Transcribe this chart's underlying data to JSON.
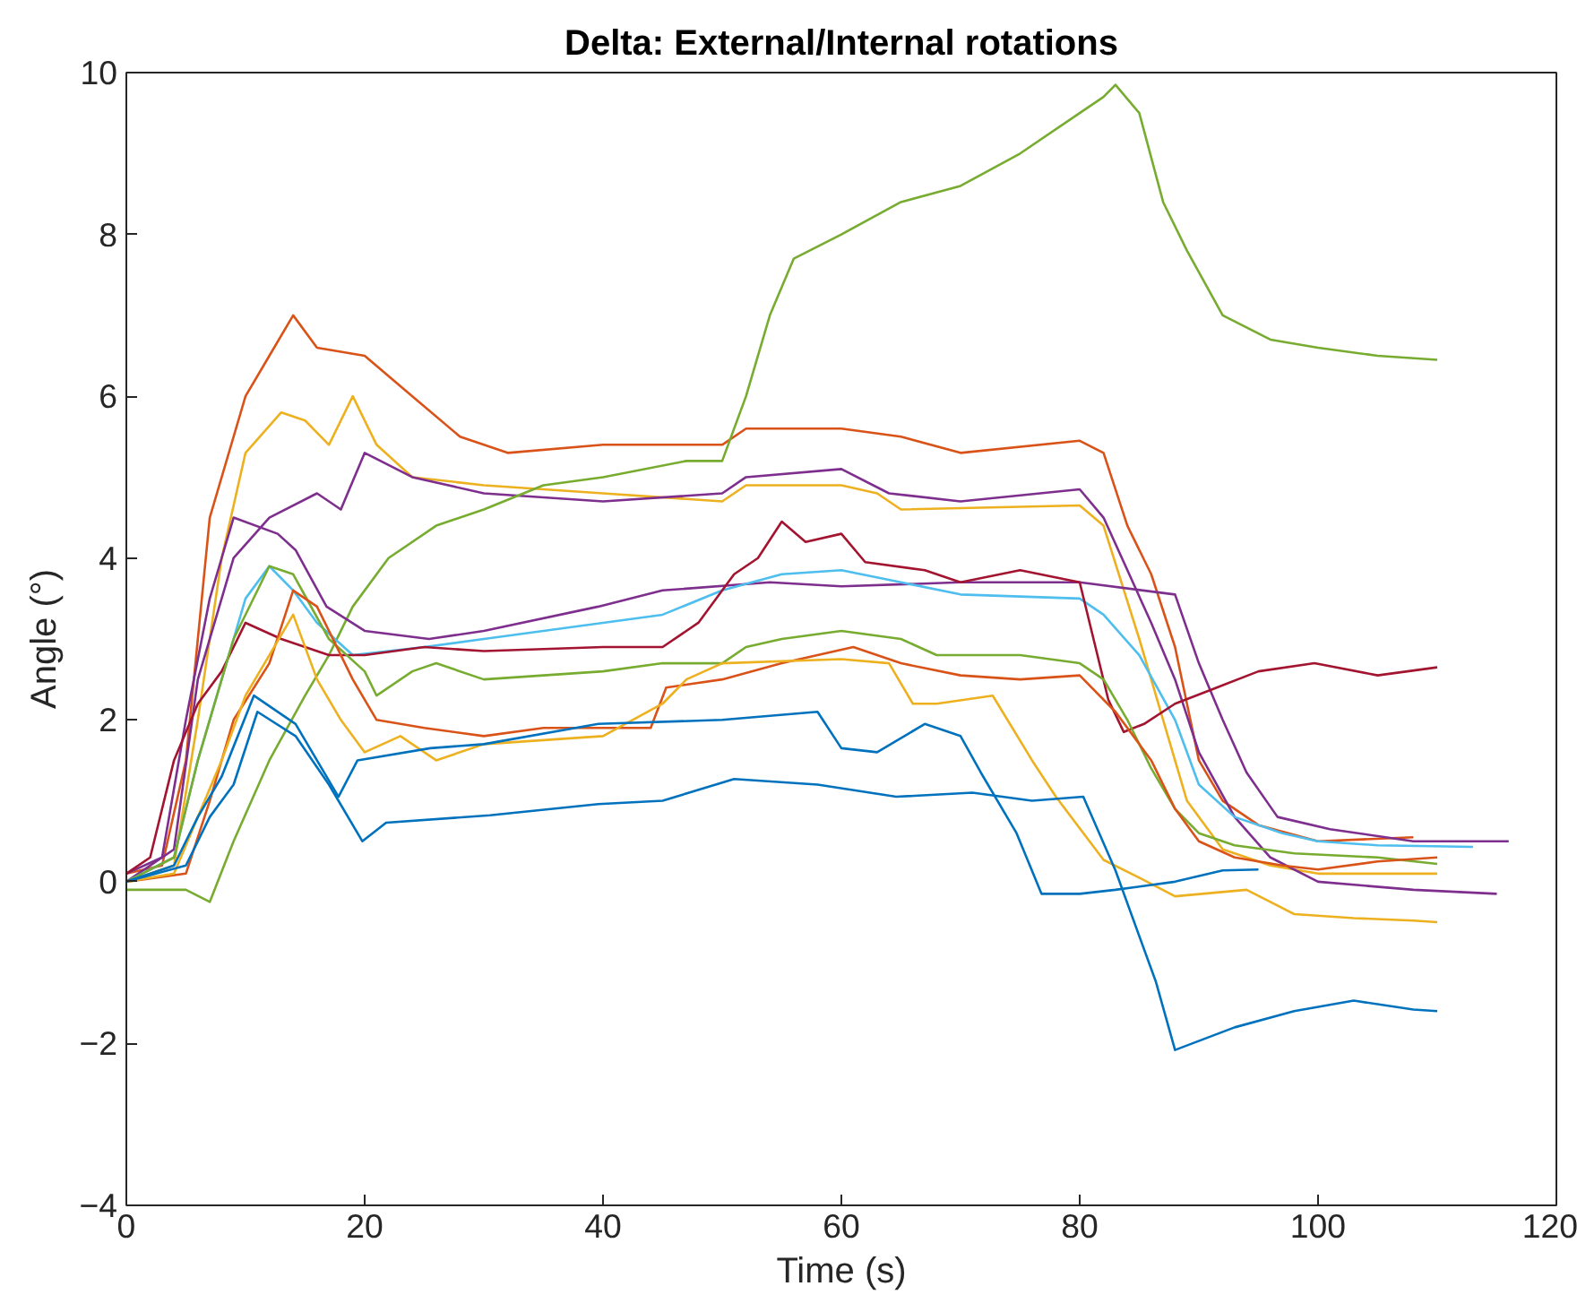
{
  "chart_data": {
    "type": "line",
    "title": "Delta: External/Internal rotations",
    "xlabel": "Time (s)",
    "ylabel": "Angle (°)",
    "xlim": [
      0,
      120
    ],
    "ylim": [
      -4,
      10
    ],
    "xticks": [
      0,
      20,
      40,
      60,
      80,
      100,
      120
    ],
    "yticks": [
      -4,
      -2,
      0,
      2,
      4,
      6,
      8,
      10
    ],
    "grid": false,
    "series": [
      {
        "color": "#d95319",
        "x": [
          0,
          3,
          5,
          7,
          10,
          12,
          14,
          16,
          20,
          24,
          28,
          32,
          40,
          50,
          52,
          60,
          65,
          70,
          80,
          82,
          84,
          86,
          88,
          90,
          92,
          95,
          100,
          108
        ],
        "values": [
          0.1,
          0.2,
          1.5,
          4.5,
          6.0,
          6.5,
          7.0,
          6.6,
          6.5,
          6.0,
          5.5,
          5.3,
          5.4,
          5.4,
          5.6,
          5.6,
          5.5,
          5.3,
          5.45,
          5.3,
          4.4,
          3.8,
          2.9,
          1.5,
          1.0,
          0.7,
          0.5,
          0.55
        ]
      },
      {
        "color": "#edb120",
        "x": [
          0,
          4,
          6,
          8,
          10,
          13,
          15,
          17,
          19,
          21,
          24,
          30,
          40,
          50,
          52,
          60,
          63,
          65,
          80,
          82,
          85,
          87,
          89,
          92,
          96,
          100,
          110
        ],
        "values": [
          0,
          0.2,
          2.0,
          4.0,
          5.3,
          5.8,
          5.7,
          5.4,
          6.0,
          5.4,
          5.0,
          4.9,
          4.8,
          4.7,
          4.9,
          4.9,
          4.8,
          4.6,
          4.65,
          4.4,
          3.0,
          2.0,
          1.0,
          0.4,
          0.2,
          0.1,
          0.1
        ]
      },
      {
        "color": "#7e2f8e",
        "x": [
          0,
          4,
          6,
          9,
          12,
          16,
          18,
          20,
          24,
          30,
          40,
          50,
          52,
          60,
          64,
          70,
          80,
          82,
          86,
          88,
          90,
          93,
          96,
          100,
          108,
          115
        ],
        "values": [
          0,
          0.4,
          2.5,
          4.0,
          4.5,
          4.8,
          4.6,
          5.3,
          5.0,
          4.8,
          4.7,
          4.8,
          5.0,
          5.1,
          4.8,
          4.7,
          4.85,
          4.5,
          3.2,
          2.5,
          1.6,
          0.8,
          0.3,
          0.0,
          -0.1,
          -0.15
        ]
      },
      {
        "color": "#77ac30",
        "x": [
          0,
          5,
          7,
          9,
          12,
          15,
          17,
          19,
          22,
          26,
          30,
          35,
          40,
          47,
          50,
          52,
          54,
          56,
          60,
          65,
          70,
          75,
          80,
          82,
          83,
          85,
          87,
          89,
          92,
          96,
          100,
          105,
          110
        ],
        "values": [
          -0.1,
          -0.1,
          -0.25,
          0.5,
          1.5,
          2.3,
          2.8,
          3.4,
          4.0,
          4.4,
          4.6,
          4.9,
          5.0,
          5.2,
          5.2,
          6.0,
          7.0,
          7.7,
          8.0,
          8.4,
          8.6,
          9.0,
          9.5,
          9.7,
          9.85,
          9.5,
          8.4,
          7.8,
          7.0,
          6.7,
          6.6,
          6.5,
          6.45
        ]
      },
      {
        "color": "#7e2f8e",
        "x": [
          0,
          3,
          5,
          7,
          9,
          12.7,
          14.2,
          16.8,
          20,
          25.4,
          30,
          39.6,
          45,
          54,
          60,
          70,
          80,
          88,
          90,
          92,
          94,
          96.6,
          101,
          108,
          116
        ],
        "values": [
          0.1,
          0.3,
          2.0,
          3.5,
          4.5,
          4.3,
          4.1,
          3.4,
          3.1,
          3.0,
          3.1,
          3.4,
          3.6,
          3.7,
          3.65,
          3.7,
          3.7,
          3.55,
          2.7,
          2.0,
          1.35,
          0.8,
          0.65,
          0.5,
          0.5
        ]
      },
      {
        "color": "#4dbeee",
        "x": [
          0,
          4,
          6,
          8,
          10,
          12,
          14,
          16,
          19,
          25,
          30,
          40,
          45,
          50,
          55,
          60,
          65,
          70,
          80,
          82,
          85,
          88,
          90,
          93,
          97,
          100,
          105,
          113
        ],
        "values": [
          0,
          0.3,
          1.5,
          2.5,
          3.5,
          3.9,
          3.6,
          3.2,
          2.8,
          2.9,
          3.0,
          3.2,
          3.3,
          3.6,
          3.8,
          3.85,
          3.7,
          3.55,
          3.5,
          3.3,
          2.8,
          2.0,
          1.2,
          0.8,
          0.6,
          0.5,
          0.45,
          0.43
        ]
      },
      {
        "color": "#a2142f",
        "x": [
          0,
          2,
          4,
          6,
          8,
          10,
          13,
          17,
          20,
          25,
          30,
          40,
          45,
          48,
          51,
          53,
          55,
          57,
          60,
          62,
          67,
          70,
          75,
          80,
          82.4,
          83.7,
          85.4,
          88,
          91.5,
          95,
          99.7,
          105,
          110
        ],
        "values": [
          0.1,
          0.3,
          1.5,
          2.2,
          2.6,
          3.2,
          3.0,
          2.8,
          2.8,
          2.9,
          2.85,
          2.9,
          2.9,
          3.2,
          3.8,
          4.0,
          4.45,
          4.2,
          4.3,
          3.95,
          3.85,
          3.7,
          3.85,
          3.7,
          2.25,
          1.85,
          1.95,
          2.2,
          2.4,
          2.6,
          2.7,
          2.55,
          2.65
        ]
      },
      {
        "color": "#77ac30",
        "x": [
          0,
          4,
          6,
          9,
          12,
          14,
          17,
          20,
          21,
          24,
          26,
          30,
          40,
          45,
          50,
          52,
          55,
          60,
          65,
          68,
          75,
          80,
          82,
          84,
          86,
          88,
          90,
          93,
          98,
          105,
          110
        ],
        "values": [
          0,
          0.3,
          1.5,
          3.0,
          3.9,
          3.8,
          3.0,
          2.6,
          2.3,
          2.6,
          2.7,
          2.5,
          2.6,
          2.7,
          2.7,
          2.9,
          3.0,
          3.1,
          3.0,
          2.8,
          2.8,
          2.7,
          2.5,
          2.0,
          1.4,
          0.9,
          0.6,
          0.45,
          0.35,
          0.3,
          0.22
        ]
      },
      {
        "color": "#d95319",
        "x": [
          0,
          5,
          7,
          9,
          12,
          14,
          16,
          19,
          21,
          25,
          30,
          35,
          40,
          44,
          45.3,
          50,
          55,
          61,
          65,
          70,
          75,
          80,
          83,
          86,
          88,
          90,
          93,
          97,
          100,
          105,
          110
        ],
        "values": [
          0,
          0.1,
          1.0,
          2.0,
          2.7,
          3.6,
          3.4,
          2.5,
          2.0,
          1.9,
          1.8,
          1.9,
          1.9,
          1.9,
          2.4,
          2.5,
          2.7,
          2.9,
          2.7,
          2.55,
          2.5,
          2.55,
          2.1,
          1.5,
          0.9,
          0.5,
          0.3,
          0.2,
          0.15,
          0.25,
          0.3
        ]
      },
      {
        "color": "#edb120",
        "x": [
          0,
          4,
          6,
          8,
          10,
          12,
          14,
          16,
          18,
          20,
          23,
          26,
          30,
          40,
          45,
          47,
          50,
          60,
          64,
          66,
          68,
          72.7,
          76,
          78,
          82,
          85,
          88,
          94,
          98,
          103,
          108,
          110
        ],
        "values": [
          0,
          0.1,
          0.8,
          1.5,
          2.3,
          2.8,
          3.3,
          2.5,
          2.0,
          1.6,
          1.8,
          1.5,
          1.7,
          1.8,
          2.2,
          2.5,
          2.7,
          2.75,
          2.7,
          2.2,
          2.2,
          2.3,
          1.5,
          1.05,
          0.27,
          0.05,
          -0.18,
          -0.1,
          -0.4,
          -0.45,
          -0.48,
          -0.5
        ]
      },
      {
        "color": "#0072bd",
        "x": [
          0,
          4,
          6,
          8,
          10.7,
          14.2,
          17.8,
          19.4,
          25.5,
          30,
          39.6,
          50,
          58,
          60,
          63,
          67,
          70,
          71.7,
          74.7,
          76.8,
          80,
          83,
          88,
          92,
          95
        ],
        "values": [
          0,
          0.2,
          0.8,
          1.3,
          2.3,
          1.95,
          1.05,
          1.5,
          1.65,
          1.7,
          1.95,
          2.0,
          2.1,
          1.65,
          1.6,
          1.95,
          1.8,
          1.35,
          0.6,
          -0.15,
          -0.15,
          -0.1,
          0.0,
          0.14,
          0.15
        ]
      },
      {
        "color": "#0072bd",
        "x": [
          0,
          5,
          7,
          9,
          11,
          14.2,
          17,
          19.8,
          21.8,
          30.5,
          39.6,
          45,
          51,
          58,
          64.6,
          71,
          76,
          80.3,
          83,
          84.5,
          86.4,
          88,
          93,
          98,
          103,
          108,
          110
        ],
        "values": [
          0,
          0.2,
          0.8,
          1.2,
          2.1,
          1.8,
          1.2,
          0.5,
          0.73,
          0.82,
          0.96,
          1.0,
          1.27,
          1.2,
          1.05,
          1.1,
          1.0,
          1.05,
          0.14,
          -0.47,
          -1.24,
          -2.08,
          -1.8,
          -1.6,
          -1.47,
          -1.58,
          -1.6
        ]
      }
    ]
  }
}
